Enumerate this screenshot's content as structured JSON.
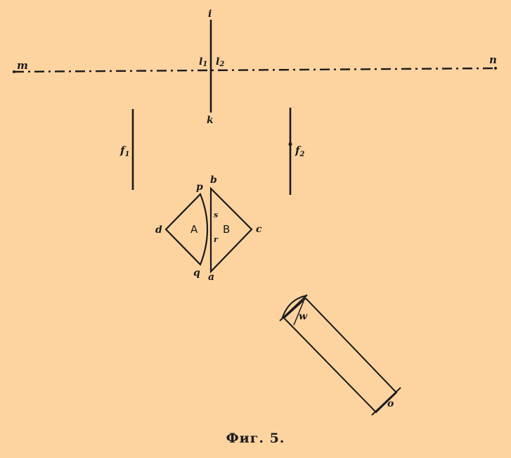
{
  "labels": {
    "m": "m",
    "n": "n",
    "i": "i",
    "k": "k",
    "l1": "l",
    "l1_sub": "1",
    "l2": "l",
    "l2_sub": "2",
    "f1": "f",
    "f1_sub": "1",
    "f2": "f",
    "f2_sub": "2",
    "p": "p",
    "b": "b",
    "d": "d",
    "c": "c",
    "q": "q",
    "a": "a",
    "s": "s",
    "r": "r",
    "A": "A",
    "B": "B",
    "w": "w",
    "o": "o"
  },
  "caption": "Фиг. 5.",
  "colors": {
    "background": "#fdd4a0",
    "ink": "#1a1a1a"
  }
}
